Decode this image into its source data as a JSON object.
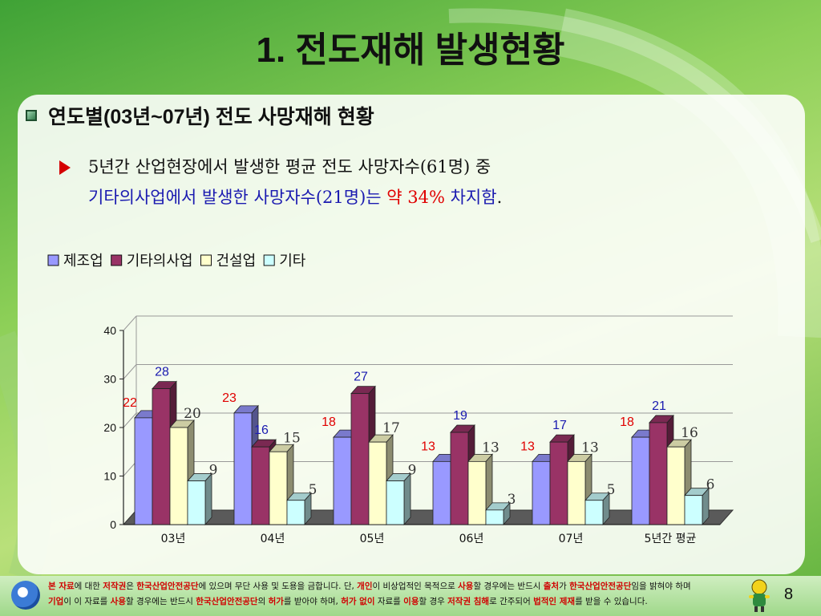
{
  "slide": {
    "title": "1. 전도재해 발생현황",
    "heading": "연도별(03년~07년) 전도 사망재해 현황",
    "bullet_line1": "5년간 산업현장에서 발생한 평균 전도 사망자수(61명) 중",
    "bullet_line2_blue": "기타의사업에서 발생한 사망자수(21명)는 ",
    "bullet_line2_red": "약 34%",
    "bullet_line2_tail": " 차지함",
    "bullet_line2_end": ".",
    "page_number": "8"
  },
  "footer": {
    "l1_a": "본 자료",
    "l1_b": "에 대한 ",
    "l1_c": "저작권",
    "l1_d": "은 ",
    "l1_e": "한국산업안전공단",
    "l1_f": "에 있으며 무단 사용 및 도용을 금합니다. 단, ",
    "l1_g": "개인",
    "l1_h": "이 비상업적인 목적으로 ",
    "l1_i": "사용",
    "l1_j": "할 경우에는 반드시 ",
    "l1_k": "출처",
    "l1_l": "가 ",
    "l1_m": "한국산업안전공단",
    "l1_n": "임을 밝혀야 하며",
    "l2_a": "기업",
    "l2_b": "이 이 자료를 ",
    "l2_c": "사용",
    "l2_d": "할 경우에는 반드시 ",
    "l2_e": "한국산업안전공단",
    "l2_f": "의 ",
    "l2_g": "허가",
    "l2_h": "를 받아야 하며, ",
    "l2_i": "허가 없이",
    "l2_j": " 자료를 ",
    "l2_k": "이용",
    "l2_l": "할 경우 ",
    "l2_m": "저작권 침해",
    "l2_n": "로 간주되어 ",
    "l2_o": "법적인 제재",
    "l2_p": "를 받을 수 있습니다."
  },
  "chart_data": {
    "type": "bar",
    "categories": [
      "03년",
      "04년",
      "05년",
      "06년",
      "07년",
      "5년간 평균"
    ],
    "series": [
      {
        "name": "제조업",
        "values": [
          22,
          23,
          18,
          13,
          13,
          18
        ],
        "color": "#9999ff",
        "label_color": "#e00000"
      },
      {
        "name": "기타의사업",
        "values": [
          28,
          16,
          27,
          19,
          17,
          21
        ],
        "color": "#993366",
        "label_color": "#1a1ab0"
      },
      {
        "name": "건설업",
        "values": [
          20,
          15,
          17,
          13,
          13,
          16
        ],
        "color": "#ffffcc",
        "label_color": "#333333"
      },
      {
        "name": "기타",
        "values": [
          9,
          5,
          9,
          3,
          5,
          6
        ],
        "color": "#ccffff",
        "label_color": "#333333"
      }
    ],
    "ylim": [
      0,
      40
    ],
    "yticks": [
      0,
      10,
      20,
      30,
      40
    ],
    "grid": true,
    "legend": "top-left"
  }
}
